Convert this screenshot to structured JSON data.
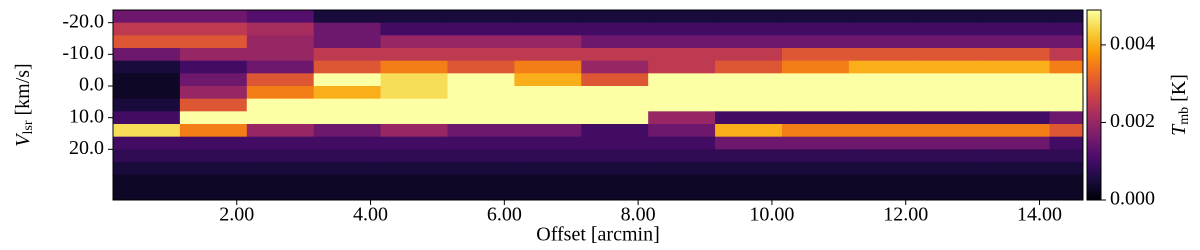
{
  "chart_data": {
    "type": "heatmap",
    "xlabel": "Offset [arcmin]",
    "ylabel": [
      "V",
      "lsr",
      "[km/s]"
    ],
    "colorbar_label": [
      "T",
      "mb",
      "[K]"
    ],
    "colormap": "inferno",
    "xlim": [
      0.15,
      14.65
    ],
    "ylim": [
      -24,
      36
    ],
    "y_inverted": true,
    "xticks": [
      {
        "value": 2,
        "label": "2.00"
      },
      {
        "value": 4,
        "label": "4.00"
      },
      {
        "value": 6,
        "label": "6.00"
      },
      {
        "value": 8,
        "label": "8.00"
      },
      {
        "value": 10,
        "label": "10.00"
      },
      {
        "value": 12,
        "label": "12.00"
      },
      {
        "value": 14,
        "label": "14.00"
      }
    ],
    "yticks": [
      {
        "value": -20,
        "label": "-20.0"
      },
      {
        "value": -10,
        "label": "-10.0"
      },
      {
        "value": 0,
        "label": "0.0"
      },
      {
        "value": 10,
        "label": "10.0"
      },
      {
        "value": 20,
        "label": "20.0"
      }
    ],
    "clim": [
      0,
      0.0049
    ],
    "cticks": [
      {
        "value": 0,
        "label": "0.000"
      },
      {
        "value": 0.002,
        "label": "0.002"
      },
      {
        "value": 0.004,
        "label": "0.004"
      }
    ],
    "x_edges": [
      0.15,
      1.15,
      2.15,
      3.15,
      4.15,
      5.15,
      6.15,
      7.15,
      8.15,
      9.15,
      10.15,
      11.15,
      12.15,
      13.15,
      14.15,
      14.65
    ],
    "y_edges": [
      -24,
      -20,
      -16,
      -12,
      -8,
      -4,
      0,
      4,
      8,
      12,
      16,
      20,
      24,
      28,
      32,
      36
    ],
    "z": [
      [
        0.0015,
        0.0015,
        0.0012,
        0.0005,
        0.0005,
        0.0005,
        0.0005,
        0.0005,
        0.0005,
        0.0005,
        0.0005,
        0.0005,
        0.0005,
        0.0005,
        0.0005
      ],
      [
        0.0025,
        0.0025,
        0.0022,
        0.0015,
        0.001,
        0.001,
        0.001,
        0.001,
        0.001,
        0.001,
        0.001,
        0.001,
        0.001,
        0.001,
        0.001
      ],
      [
        0.003,
        0.003,
        0.002,
        0.0015,
        0.002,
        0.002,
        0.002,
        0.0015,
        0.0015,
        0.0015,
        0.0015,
        0.0015,
        0.0015,
        0.0015,
        0.0015
      ],
      [
        0.0015,
        0.002,
        0.002,
        0.0025,
        0.0025,
        0.0025,
        0.0025,
        0.0025,
        0.0025,
        0.0025,
        0.003,
        0.003,
        0.003,
        0.003,
        0.0025
      ],
      [
        0.0005,
        0.001,
        0.0015,
        0.003,
        0.0035,
        0.003,
        0.0035,
        0.002,
        0.0025,
        0.003,
        0.0035,
        0.004,
        0.004,
        0.004,
        0.0035
      ],
      [
        0.0003,
        0.0015,
        0.003,
        0.0049,
        0.0045,
        0.0049,
        0.004,
        0.003,
        0.0049,
        0.0049,
        0.0049,
        0.0049,
        0.0049,
        0.0049,
        0.0049
      ],
      [
        0.0003,
        0.002,
        0.0035,
        0.004,
        0.0045,
        0.0049,
        0.0049,
        0.0049,
        0.0049,
        0.0049,
        0.0049,
        0.0049,
        0.0049,
        0.0049,
        0.0049
      ],
      [
        0.0005,
        0.003,
        0.0049,
        0.0049,
        0.0049,
        0.0049,
        0.0049,
        0.0049,
        0.0049,
        0.0049,
        0.0049,
        0.0049,
        0.0049,
        0.0049,
        0.0049
      ],
      [
        0.001,
        0.0049,
        0.0049,
        0.0049,
        0.0049,
        0.0049,
        0.0049,
        0.0049,
        0.002,
        0.001,
        0.001,
        0.001,
        0.001,
        0.001,
        0.0015
      ],
      [
        0.0045,
        0.0035,
        0.002,
        0.0015,
        0.002,
        0.0015,
        0.0015,
        0.001,
        0.0015,
        0.004,
        0.0035,
        0.0035,
        0.0035,
        0.0035,
        0.003
      ],
      [
        0.001,
        0.001,
        0.001,
        0.001,
        0.001,
        0.001,
        0.001,
        0.001,
        0.001,
        0.0015,
        0.0015,
        0.0015,
        0.0015,
        0.0015,
        0.001
      ],
      [
        0.0008,
        0.0008,
        0.0008,
        0.0008,
        0.0008,
        0.0008,
        0.0008,
        0.0008,
        0.0008,
        0.0008,
        0.0008,
        0.0008,
        0.0008,
        0.0008,
        0.0008
      ],
      [
        0.0005,
        0.0005,
        0.0005,
        0.0005,
        0.0005,
        0.0005,
        0.0005,
        0.0005,
        0.0005,
        0.0005,
        0.0005,
        0.0005,
        0.0005,
        0.0005,
        0.0005
      ],
      [
        0.0003,
        0.0003,
        0.0003,
        0.0003,
        0.0003,
        0.0003,
        0.0003,
        0.0003,
        0.0003,
        0.0003,
        0.0003,
        0.0003,
        0.0003,
        0.0003,
        0.0003
      ],
      [
        0.0003,
        0.0003,
        0.0003,
        0.0003,
        0.0003,
        0.0003,
        0.0003,
        0.0003,
        0.0003,
        0.0003,
        0.0003,
        0.0003,
        0.0003,
        0.0003,
        0.0003
      ]
    ]
  }
}
